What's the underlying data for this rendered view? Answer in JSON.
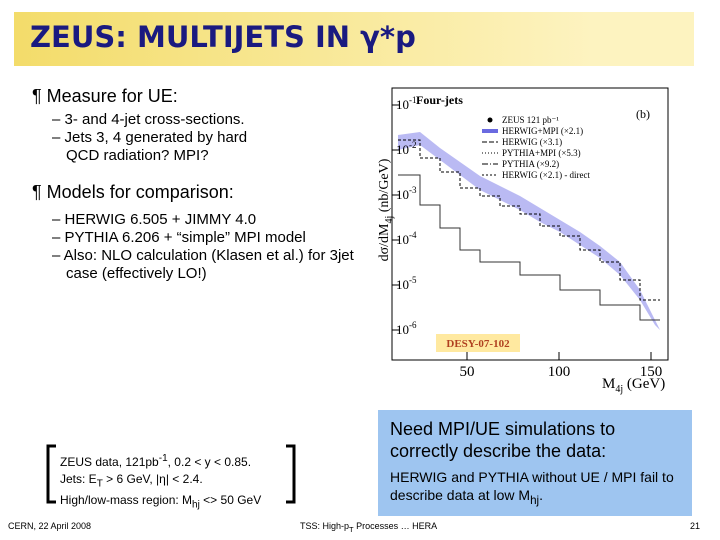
{
  "header": {
    "title": "ZEUS: MULTIJETS IN γ*p"
  },
  "bullets": [
    {
      "text": "¶ Measure for UE:",
      "items": [
        "– 3- and 4-jet cross-sections.",
        "– Jets 3, 4 generated by hard QCD radiation? MPI?"
      ]
    },
    {
      "text": "¶ Models for comparison:",
      "items": [
        "– HERWIG 6.505 + JIMMY 4.0",
        "– PYTHIA 6.206 + “simple” MPI model",
        "– Also: NLO calculation (Klasen et al.) for 3jet case (effectively LO!)"
      ]
    }
  ],
  "figure": {
    "title": "Four-jets",
    "panel": "(b)",
    "stamp": "DESY-07-102",
    "ylabel": [
      "dσ/dM",
      "4j",
      " (nb/GeV)"
    ],
    "xlabel": [
      "M",
      "4j",
      " (GeV)"
    ],
    "yticks": [
      [
        "10",
        "-1"
      ],
      [
        "10",
        "-2"
      ],
      [
        "10",
        "-3"
      ],
      [
        "10",
        "-4"
      ],
      [
        "10",
        "-5"
      ],
      [
        "10",
        "-6"
      ]
    ],
    "xticks": [
      "50",
      "100",
      "150"
    ],
    "legend": [
      "ZEUS 121 pb⁻¹",
      "HERWIG+MPI (×2.1)",
      "HERWIG (×3.1)",
      "PYTHIA+MPI (×5.3)",
      "PYTHIA (×9.2)",
      "HERWIG (×2.1) - direct"
    ]
  },
  "note": {
    "lines": [
      [
        "ZEUS data, 121pb",
        "-1",
        ", 0.2 < y < 0.85."
      ],
      [
        "Jets: E",
        "T",
        " > 6 GeV, |η| < 2.4."
      ],
      [
        "High/low-mass region: M",
        "hj",
        " <> 50 GeV"
      ]
    ]
  },
  "callout": {
    "heading": "Need MPI/UE simulations to correctly describe the data:",
    "body": [
      "HERWIG and PYTHIA without UE / MPI fail to describe data at low M",
      "hj",
      "."
    ]
  },
  "footer": {
    "left": "CERN, 22 April 2008",
    "center": [
      "TSS: High-p",
      "T",
      " Processes … HERA"
    ],
    "page": "21"
  }
}
